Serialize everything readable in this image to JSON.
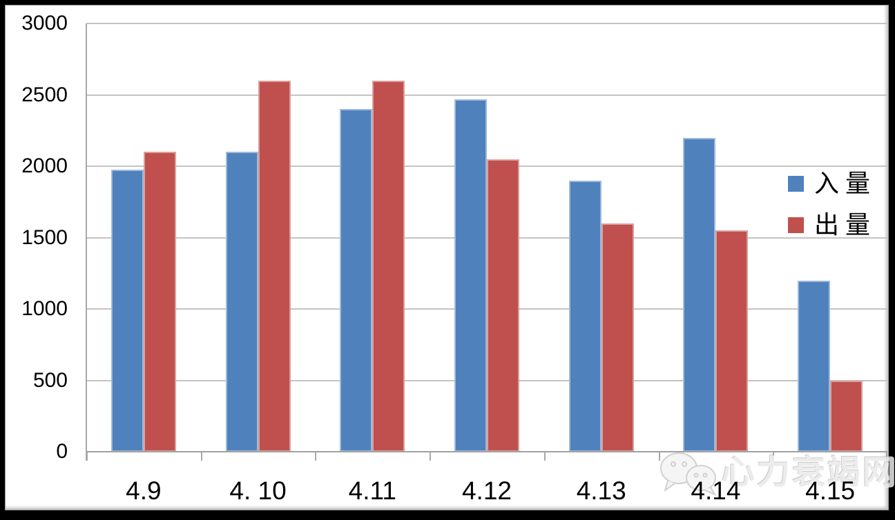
{
  "chart_data": {
    "type": "bar",
    "title": "",
    "xlabel": "",
    "ylabel": "",
    "categories": [
      "4.9",
      "4. 10",
      "4.11",
      "4.12",
      "4.13",
      "4.14",
      "4.15"
    ],
    "series": [
      {
        "name": "入 量",
        "color": "#4F81BD",
        "values": [
          1975,
          2100,
          2400,
          2470,
          1900,
          2200,
          1200
        ]
      },
      {
        "name": "出 量",
        "color": "#C0504D",
        "values": [
          2100,
          2600,
          2600,
          2050,
          1600,
          1550,
          500
        ]
      }
    ],
    "ylim": [
      0,
      3000
    ],
    "yticks": [
      0,
      500,
      1000,
      1500,
      2000,
      2500,
      3000
    ],
    "grid": true,
    "legend_position": "right-inside"
  },
  "watermark": {
    "text": "心力衰竭网",
    "icon": "wechat-icon"
  },
  "colors": {
    "series_intake": "#4F81BD",
    "series_output": "#C0504D",
    "gridline": "#C3C3C3",
    "axis": "#A0A0A0",
    "frame": "#000000",
    "background": "#FFFFFF"
  }
}
